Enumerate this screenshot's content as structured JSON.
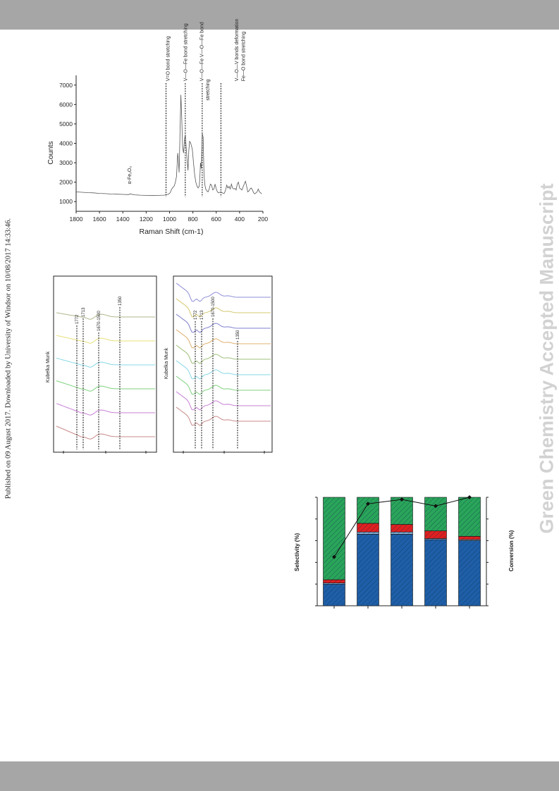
{
  "header_bar": "",
  "footer_bar": "",
  "watermark": "Green Chemistry Accepted Manuscript",
  "published_note": "Published on 09 August 2017. Downloaded by University of Windsor on 10/08/2017 14:33:46.",
  "colors": {
    "bar": "#a6a6a6",
    "watermark": "#d2d2d2",
    "sel_blue": "#1f5fa8",
    "sel_red": "#e02020",
    "sel_green": "#2aa55a"
  },
  "chart_data": [
    {
      "type": "line",
      "id": "raman",
      "xlabel": "Raman Shift (cm-1)",
      "ylabel": "Counts",
      "xlim": [
        1800,
        200
      ],
      "ylim": [
        500,
        7500
      ],
      "x_ticks": [
        1800,
        1600,
        1400,
        1200,
        1000,
        800,
        600,
        400,
        200
      ],
      "y_ticks": [
        1000,
        2000,
        3000,
        4000,
        5000,
        6000,
        7000
      ],
      "series": [
        {
          "x": [
            1800,
            1750,
            1700,
            1650,
            1600,
            1550,
            1500,
            1450,
            1400,
            1350,
            1340,
            1300,
            1250,
            1200,
            1150,
            1100,
            1050,
            1030,
            1010,
            995,
            985,
            975,
            960,
            950,
            940,
            930,
            925,
            918,
            910,
            903,
            895,
            888,
            880,
            872,
            865,
            860,
            850,
            842,
            835,
            828,
            818,
            805,
            795,
            785,
            775,
            765,
            755,
            745,
            740,
            735,
            728,
            720,
            712,
            705,
            698,
            690,
            680,
            670,
            660,
            650,
            640,
            630,
            620,
            610,
            600,
            590,
            580,
            570,
            560,
            550,
            540,
            530,
            520,
            510,
            500,
            490,
            480,
            470,
            460,
            450,
            440,
            430,
            420,
            410,
            400,
            390,
            380,
            370,
            360,
            350,
            340,
            330,
            320,
            310,
            300,
            290,
            280,
            270,
            260,
            250,
            240,
            230,
            220,
            210
          ],
          "y": [
            1500,
            1480,
            1460,
            1450,
            1420,
            1410,
            1390,
            1380,
            1370,
            1360,
            1400,
            1350,
            1330,
            1320,
            1310,
            1320,
            1330,
            1350,
            1380,
            1450,
            1600,
            1700,
            1800,
            2000,
            2300,
            3500,
            3200,
            2500,
            4600,
            6500,
            5200,
            3800,
            3500,
            4200,
            4450,
            4000,
            3200,
            2600,
            3600,
            4100,
            4000,
            3700,
            3000,
            2400,
            2000,
            1800,
            1700,
            1800,
            2300,
            3000,
            2700,
            4500,
            4300,
            2400,
            1900,
            1650,
            1550,
            1500,
            1650,
            1900,
            1850,
            1600,
            1650,
            1900,
            1650,
            1500,
            1450,
            1480,
            1500,
            1470,
            1420,
            1430,
            1600,
            1850,
            1700,
            1780,
            1650,
            1900,
            1700,
            1650,
            1680,
            1600,
            1900,
            2000,
            1700,
            1650,
            1600,
            1750,
            1900,
            2050,
            1800,
            1500,
            1550,
            1650,
            1700,
            1600,
            1450,
            1400,
            1450,
            1500,
            1650,
            1500,
            1450,
            1400
          ]
        }
      ],
      "guides": [
        1030,
        865,
        720,
        560
      ],
      "annotations": [
        {
          "text": "α-Fe₂O₃",
          "x": 1330,
          "y": 1900
        },
        {
          "text": "V=O bond stretching",
          "x": 1000,
          "y": 7200
        },
        {
          "text": "V—O—Fe bond stretching",
          "x": 850,
          "y": 7200
        },
        {
          "text": "V—O—Fe V—O—Fe bond",
          "x": 710,
          "y": 7200
        },
        {
          "text": "stretching",
          "x": 660,
          "y": 6200
        },
        {
          "text": "V—O—V bonds deformation",
          "x": 410,
          "y": 7200
        },
        {
          "text": "Fe—O bond stretching",
          "x": 355,
          "y": 7200
        }
      ]
    },
    {
      "type": "line",
      "id": "drifts-left",
      "ylabel": "Kubelka Munk",
      "guides": [
        "1772",
        "1713",
        "1670-1500",
        "1350"
      ],
      "series": [
        {
          "color": "#c88a8a"
        },
        {
          "color": "#c77fd6"
        },
        {
          "color": "#7fd27f"
        },
        {
          "color": "#87d8e6"
        },
        {
          "color": "#e8e07a"
        },
        {
          "color": "#b2b88c"
        }
      ]
    },
    {
      "type": "line",
      "id": "drifts-right",
      "ylabel": "Kubelka Munk",
      "guides": [
        "1772",
        "1713",
        "1670-1500",
        "1350"
      ],
      "series": [
        {
          "color": "#c88a8a"
        },
        {
          "color": "#c77fd6"
        },
        {
          "color": "#7fd27f"
        },
        {
          "color": "#87d8e6"
        },
        {
          "color": "#9fbf7a"
        },
        {
          "color": "#e0b070"
        },
        {
          "color": "#7f7fd0"
        },
        {
          "color": "#d6c870"
        },
        {
          "color": "#8f8fd8"
        }
      ]
    },
    {
      "type": "bar",
      "id": "selectivity",
      "ylabel": "Selectivity (%)",
      "y2label": "Conversion (%)",
      "ylim": [
        0,
        100
      ],
      "stacked_series": [
        {
          "color": "#1f5fa8",
          "values": [
            20,
            66,
            66,
            61,
            60
          ]
        },
        {
          "color": "#8ab0d8",
          "values": [
            1,
            2,
            2,
            1,
            1
          ]
        },
        {
          "color": "#e02020",
          "values": [
            3,
            8,
            7,
            7,
            3
          ]
        },
        {
          "color": "#2aa55a",
          "values": [
            76,
            24,
            25,
            31,
            36
          ]
        }
      ],
      "conversion": [
        45,
        94,
        98,
        92,
        100
      ]
    }
  ]
}
